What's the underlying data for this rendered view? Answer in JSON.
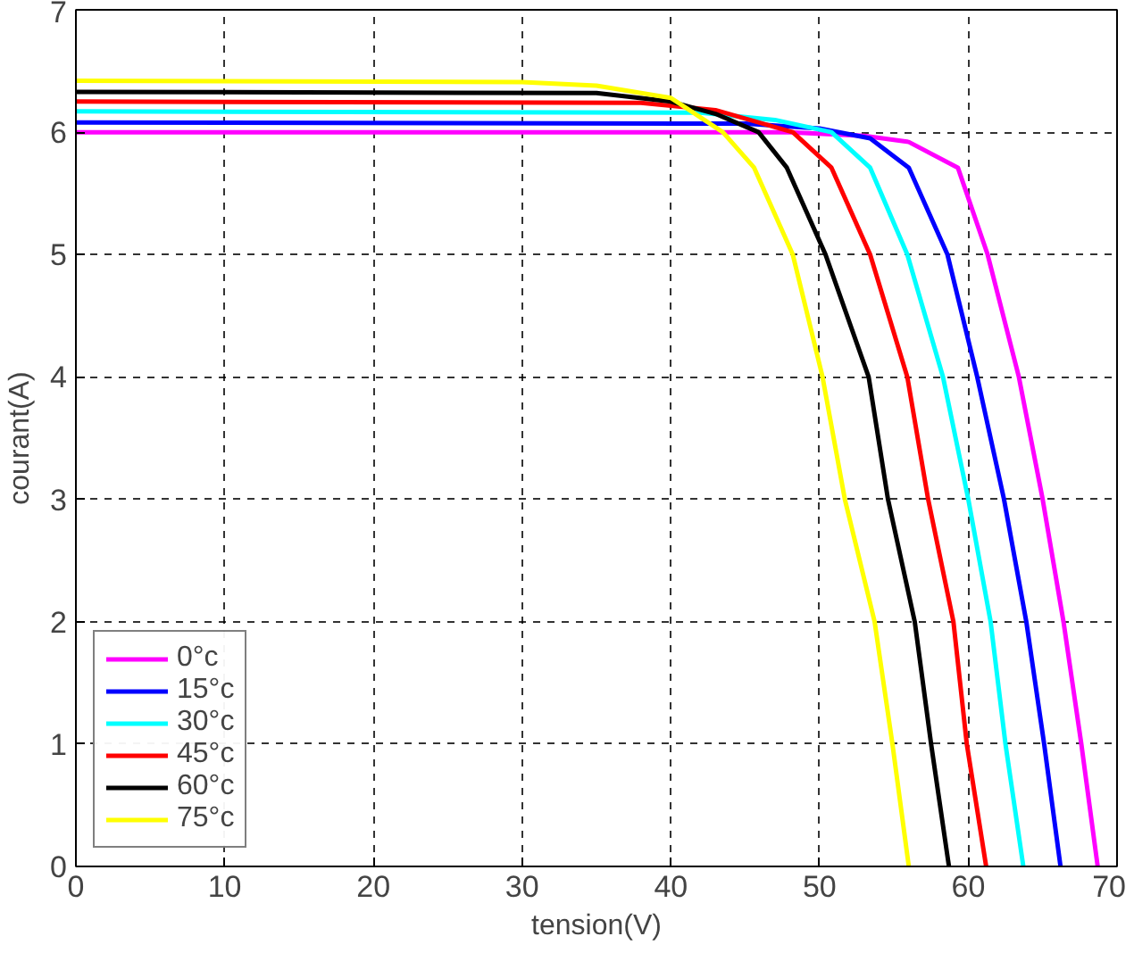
{
  "chart_data": {
    "type": "line",
    "xlabel": "tension(V)",
    "ylabel": "courant(A)",
    "xlim": [
      0,
      70
    ],
    "ylim": [
      0,
      7
    ],
    "xticks": [
      0,
      10,
      20,
      30,
      40,
      50,
      60,
      70
    ],
    "yticks": [
      0,
      1,
      2,
      3,
      4,
      5,
      6,
      7
    ],
    "grid": true,
    "legend": "bottom left",
    "marker": "none",
    "line_style": "solid",
    "series": [
      {
        "name": "0°c",
        "color": "#ff00ff",
        "x": [
          0,
          48,
          53,
          56,
          59.3,
          61.3,
          63.4,
          65,
          66.4,
          67.6,
          68.7
        ],
        "values": [
          6.0,
          6.0,
          5.97,
          5.92,
          5.71,
          5,
          4,
          3,
          2,
          1,
          0
        ]
      },
      {
        "name": "15°c",
        "color": "#0000ff",
        "x": [
          0,
          45,
          50,
          53.4,
          56,
          58.6,
          60.6,
          62.4,
          63.9,
          65.1,
          66.2
        ],
        "values": [
          6.08,
          6.07,
          6.03,
          5.95,
          5.71,
          5,
          4,
          3,
          2,
          1,
          0
        ]
      },
      {
        "name": "30°c",
        "color": "#00ffff",
        "x": [
          0,
          42,
          47,
          50.8,
          53.4,
          55.9,
          58.3,
          60,
          61.5,
          62.5,
          63.7
        ],
        "values": [
          6.17,
          6.16,
          6.1,
          6.0,
          5.71,
          5,
          4,
          3,
          2,
          1,
          0
        ]
      },
      {
        "name": "45°c",
        "color": "#ff0000",
        "x": [
          0,
          38,
          43,
          48.2,
          50.8,
          53.4,
          55.9,
          57.3,
          59,
          59.9,
          61.2
        ],
        "values": [
          6.25,
          6.24,
          6.18,
          6.0,
          5.71,
          5,
          4,
          3,
          2,
          1,
          0
        ]
      },
      {
        "name": "60°c",
        "color": "#000000",
        "x": [
          0,
          35,
          40,
          43,
          45.9,
          47.8,
          50.4,
          53.3,
          54.6,
          56.4,
          57.5,
          58.7
        ],
        "values": [
          6.33,
          6.32,
          6.25,
          6.15,
          6.0,
          5.71,
          5,
          4,
          3,
          2,
          1,
          0
        ]
      },
      {
        "name": "75°c",
        "color": "#ffff00",
        "x": [
          0,
          30,
          35,
          40,
          43.5,
          45.6,
          48.2,
          50.2,
          51.7,
          53.7,
          54.9,
          56
        ],
        "values": [
          6.42,
          6.41,
          6.38,
          6.28,
          6.0,
          5.71,
          5,
          4,
          3,
          2,
          1,
          0
        ]
      }
    ]
  }
}
